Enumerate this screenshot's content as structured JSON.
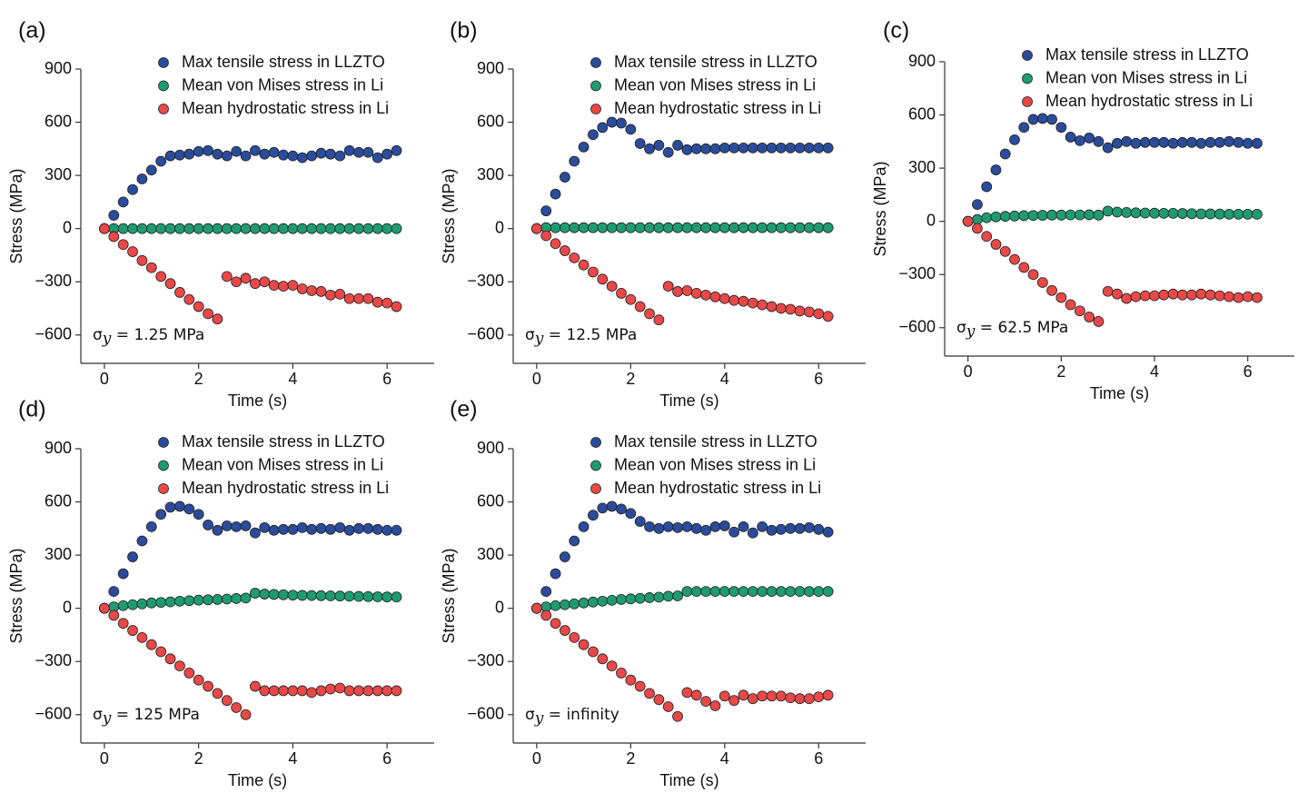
{
  "chart_data": [
    {
      "type": "scatter",
      "panel_label": "(a)",
      "x_label": "Time (s)",
      "y_label": "Stress (MPa)",
      "annotation": [
        "σ",
        "y",
        " = 1.25 MPa"
      ],
      "xlim": [
        -0.5,
        7
      ],
      "ylim": [
        -760,
        900
      ],
      "xticks": [
        0,
        2,
        4,
        6
      ],
      "yticks": [
        {
          "value": -600,
          "label": "−600"
        },
        {
          "value": -300,
          "label": "−300"
        },
        0,
        300,
        600,
        900
      ],
      "x": [
        0,
        0.2,
        0.4,
        0.6,
        0.8,
        1,
        1.2,
        1.4,
        1.6,
        1.8,
        2,
        2.2,
        2.4,
        2.6,
        2.8,
        3,
        3.2,
        3.4,
        3.6,
        3.8,
        4,
        4.2,
        4.4,
        4.6,
        4.8,
        5,
        5.2,
        5.4,
        5.6,
        5.8,
        6,
        6.2
      ],
      "series": [
        {
          "name": "Max tensile stress in LLZTO",
          "color": "#2b4c9b",
          "values": [
            0,
            75,
            150,
            220,
            280,
            330,
            380,
            410,
            415,
            420,
            435,
            440,
            420,
            410,
            435,
            410,
            440,
            420,
            430,
            415,
            410,
            400,
            410,
            425,
            420,
            410,
            440,
            430,
            430,
            400,
            420,
            440
          ]
        },
        {
          "name": "Mean von Mises stress in Li",
          "color": "#1f9b72",
          "values": [
            0,
            0,
            0,
            0,
            0,
            0,
            0,
            0,
            0,
            0,
            0,
            0,
            0,
            0,
            0,
            0,
            0,
            0,
            0,
            0,
            0,
            0,
            0,
            0,
            0,
            0,
            0,
            0,
            0,
            0,
            0,
            0
          ]
        },
        {
          "name": "Mean hydrostatic stress in Li",
          "color": "#e84848",
          "values": [
            0,
            -45,
            -90,
            -130,
            -180,
            -220,
            -270,
            -310,
            -360,
            -400,
            -440,
            -480,
            -510,
            -270,
            -300,
            -280,
            -310,
            -300,
            -320,
            -325,
            -320,
            -340,
            -350,
            -355,
            -375,
            -370,
            -395,
            -395,
            -395,
            -415,
            -420,
            -440
          ]
        }
      ]
    },
    {
      "type": "scatter",
      "panel_label": "(b)",
      "x_label": "Time (s)",
      "y_label": "Stress (MPa)",
      "annotation": [
        "σ",
        "y",
        " = 12.5 MPa"
      ],
      "xlim": [
        -0.5,
        7
      ],
      "ylim": [
        -760,
        900
      ],
      "xticks": [
        0,
        2,
        4,
        6
      ],
      "yticks": [
        {
          "value": -600,
          "label": "−600"
        },
        {
          "value": -300,
          "label": "−300"
        },
        0,
        300,
        600,
        900
      ],
      "x": [
        0,
        0.2,
        0.4,
        0.6,
        0.8,
        1,
        1.2,
        1.4,
        1.6,
        1.8,
        2,
        2.2,
        2.4,
        2.6,
        2.8,
        3,
        3.2,
        3.4,
        3.6,
        3.8,
        4,
        4.2,
        4.4,
        4.6,
        4.8,
        5,
        5.2,
        5.4,
        5.6,
        5.8,
        6,
        6.2
      ],
      "series": [
        {
          "name": "Max tensile stress in LLZTO",
          "color": "#2b4c9b",
          "values": [
            0,
            100,
            195,
            290,
            380,
            460,
            530,
            570,
            600,
            595,
            560,
            480,
            450,
            470,
            430,
            470,
            445,
            450,
            450,
            450,
            455,
            455,
            455,
            455,
            455,
            455,
            455,
            455,
            455,
            455,
            455,
            455
          ]
        },
        {
          "name": "Mean von Mises stress in Li",
          "color": "#1f9b72",
          "values": [
            0,
            5,
            5,
            5,
            5,
            5,
            5,
            5,
            5,
            5,
            5,
            5,
            5,
            5,
            5,
            5,
            5,
            5,
            5,
            5,
            5,
            5,
            5,
            5,
            5,
            5,
            5,
            5,
            5,
            5,
            5,
            5
          ]
        },
        {
          "name": "Mean hydrostatic stress in Li",
          "color": "#e84848",
          "values": [
            0,
            -40,
            -85,
            -125,
            -165,
            -205,
            -245,
            -285,
            -325,
            -365,
            -400,
            -440,
            -480,
            -515,
            -325,
            -355,
            -350,
            -365,
            -375,
            -385,
            -395,
            -405,
            -410,
            -420,
            -430,
            -440,
            -450,
            -455,
            -465,
            -470,
            -480,
            -495
          ]
        }
      ]
    },
    {
      "type": "scatter",
      "panel_label": "(c)",
      "x_label": "Time (s)",
      "y_label": "Stress (MPa)",
      "annotation": [
        "σ",
        "y",
        " = 62.5 MPa"
      ],
      "xlim": [
        -0.5,
        7
      ],
      "ylim": [
        -760,
        900
      ],
      "xticks": [
        0,
        2,
        4,
        6
      ],
      "yticks": [
        {
          "value": -600,
          "label": "−600"
        },
        {
          "value": -300,
          "label": "−300"
        },
        0,
        300,
        600,
        900
      ],
      "x": [
        0,
        0.2,
        0.4,
        0.6,
        0.8,
        1,
        1.2,
        1.4,
        1.6,
        1.8,
        2,
        2.2,
        2.4,
        2.6,
        2.8,
        3,
        3.2,
        3.4,
        3.6,
        3.8,
        4,
        4.2,
        4.4,
        4.6,
        4.8,
        5,
        5.2,
        5.4,
        5.6,
        5.8,
        6,
        6.2
      ],
      "series": [
        {
          "name": "Max tensile stress in LLZTO",
          "color": "#2b4c9b",
          "values": [
            0,
            95,
            195,
            290,
            380,
            460,
            530,
            575,
            580,
            575,
            530,
            475,
            455,
            470,
            450,
            415,
            440,
            450,
            440,
            445,
            445,
            445,
            440,
            445,
            445,
            440,
            445,
            445,
            450,
            445,
            440,
            440
          ]
        },
        {
          "name": "Mean von Mises stress in Li",
          "color": "#1f9b72",
          "values": [
            0,
            10,
            20,
            25,
            28,
            30,
            32,
            33,
            34,
            35,
            35,
            36,
            36,
            37,
            35,
            58,
            52,
            50,
            48,
            47,
            46,
            45,
            45,
            44,
            43,
            42,
            42,
            41,
            40,
            40,
            40,
            40
          ]
        },
        {
          "name": "Mean hydrostatic stress in Li",
          "color": "#e84848",
          "values": [
            0,
            -40,
            -85,
            -130,
            -170,
            -215,
            -260,
            -300,
            -345,
            -390,
            -430,
            -470,
            -505,
            -540,
            -565,
            -395,
            -410,
            -435,
            -425,
            -420,
            -420,
            -415,
            -410,
            -415,
            -415,
            -410,
            -415,
            -420,
            -425,
            -430,
            -425,
            -430
          ]
        }
      ]
    },
    {
      "type": "scatter",
      "panel_label": "(d)",
      "x_label": "Time (s)",
      "y_label": "Stress (MPa)",
      "annotation": [
        "σ",
        "y",
        " = 125 MPa"
      ],
      "xlim": [
        -0.5,
        7
      ],
      "ylim": [
        -760,
        900
      ],
      "xticks": [
        0,
        2,
        4,
        6
      ],
      "yticks": [
        {
          "value": -600,
          "label": "−600"
        },
        {
          "value": -300,
          "label": "−300"
        },
        0,
        300,
        600,
        900
      ],
      "x": [
        0,
        0.2,
        0.4,
        0.6,
        0.8,
        1,
        1.2,
        1.4,
        1.6,
        1.8,
        2,
        2.2,
        2.4,
        2.6,
        2.8,
        3,
        3.2,
        3.4,
        3.6,
        3.8,
        4,
        4.2,
        4.4,
        4.6,
        4.8,
        5,
        5.2,
        5.4,
        5.6,
        5.8,
        6,
        6.2
      ],
      "series": [
        {
          "name": "Max tensile stress in LLZTO",
          "color": "#2b4c9b",
          "values": [
            0,
            95,
            195,
            290,
            380,
            460,
            530,
            570,
            575,
            560,
            530,
            470,
            440,
            465,
            460,
            465,
            425,
            455,
            440,
            445,
            445,
            455,
            445,
            450,
            445,
            455,
            440,
            450,
            450,
            445,
            440,
            440
          ]
        },
        {
          "name": "Mean von Mises stress in Li",
          "color": "#1f9b72",
          "values": [
            0,
            8,
            15,
            20,
            25,
            30,
            33,
            36,
            40,
            43,
            46,
            48,
            50,
            52,
            55,
            58,
            85,
            80,
            78,
            76,
            74,
            73,
            72,
            71,
            70,
            69,
            68,
            67,
            66,
            65,
            64,
            64
          ]
        },
        {
          "name": "Mean hydrostatic stress in Li",
          "color": "#e84848",
          "values": [
            0,
            -40,
            -85,
            -125,
            -165,
            -205,
            -245,
            -285,
            -325,
            -365,
            -405,
            -440,
            -480,
            -520,
            -560,
            -600,
            -440,
            -465,
            -465,
            -465,
            -465,
            -465,
            -475,
            -465,
            -455,
            -450,
            -465,
            -465,
            -465,
            -465,
            -465,
            -465
          ]
        }
      ]
    },
    {
      "type": "scatter",
      "panel_label": "(e)",
      "x_label": "Time (s)",
      "y_label": "Stress (MPa)",
      "annotation": [
        "σ",
        "y",
        " = infinity"
      ],
      "xlim": [
        -0.5,
        7
      ],
      "ylim": [
        -760,
        900
      ],
      "xticks": [
        0,
        2,
        4,
        6
      ],
      "yticks": [
        {
          "value": -600,
          "label": "−600"
        },
        {
          "value": -300,
          "label": "−300"
        },
        0,
        300,
        600,
        900
      ],
      "x": [
        0,
        0.2,
        0.4,
        0.6,
        0.8,
        1,
        1.2,
        1.4,
        1.6,
        1.8,
        2,
        2.2,
        2.4,
        2.6,
        2.8,
        3,
        3.2,
        3.4,
        3.6,
        3.8,
        4,
        4.2,
        4.4,
        4.6,
        4.8,
        5,
        5.2,
        5.4,
        5.6,
        5.8,
        6,
        6.2
      ],
      "series": [
        {
          "name": "Max tensile stress in LLZTO",
          "color": "#2b4c9b",
          "values": [
            0,
            95,
            195,
            290,
            380,
            460,
            525,
            565,
            575,
            560,
            535,
            490,
            460,
            450,
            460,
            455,
            460,
            450,
            440,
            460,
            465,
            430,
            460,
            425,
            460,
            440,
            445,
            450,
            450,
            455,
            445,
            430
          ]
        },
        {
          "name": "Mean von Mises stress in Li",
          "color": "#1f9b72",
          "values": [
            0,
            8,
            15,
            20,
            25,
            30,
            35,
            40,
            45,
            50,
            53,
            56,
            60,
            63,
            68,
            70,
            95,
            95,
            95,
            95,
            95,
            95,
            95,
            95,
            95,
            95,
            95,
            95,
            95,
            95,
            95,
            95
          ]
        },
        {
          "name": "Mean hydrostatic stress in Li",
          "color": "#e84848",
          "values": [
            0,
            -40,
            -85,
            -125,
            -165,
            -205,
            -245,
            -285,
            -325,
            -365,
            -405,
            -440,
            -480,
            -515,
            -555,
            -610,
            -475,
            -490,
            -525,
            -550,
            -495,
            -520,
            -490,
            -510,
            -495,
            -495,
            -495,
            -505,
            -510,
            -510,
            -500,
            -490
          ]
        }
      ]
    }
  ]
}
